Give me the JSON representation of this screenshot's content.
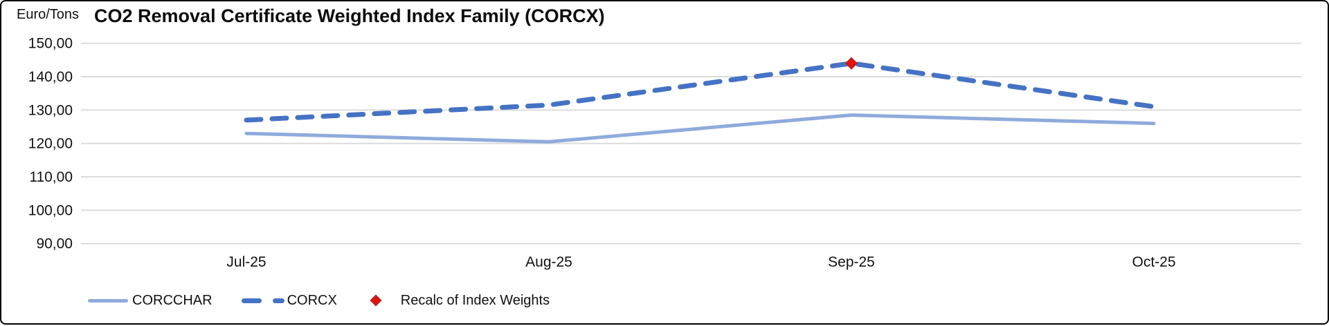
{
  "window": {
    "background": "#ffffff",
    "border_color": "#000000"
  },
  "chart_data": {
    "type": "line",
    "title": "CO2 Removal Certificate Weighted Index Family (CORCX)",
    "y_unit_label": "Euro/Tons",
    "xlabel": "",
    "ylabel": "Euro/Tons",
    "categories": [
      "Jul-25",
      "Aug-25",
      "Sep-25",
      "Oct-25"
    ],
    "series": [
      {
        "name": "CORCCHAR",
        "values": [
          123,
          120.5,
          128.5,
          126
        ],
        "color": "#8FAADC",
        "style": "solid"
      },
      {
        "name": "CORCX",
        "values": [
          127,
          131.5,
          144,
          131
        ],
        "color": "#4472C4",
        "style": "dashed"
      }
    ],
    "markers": [
      {
        "name": "Recalc of Index Weights",
        "series": "CORCX",
        "category": "Sep-25",
        "value": 144,
        "shape": "diamond",
        "color": "#E8100C"
      }
    ],
    "y_ticks": [
      {
        "label": "150,00",
        "value": 150
      },
      {
        "label": "140,00",
        "value": 140
      },
      {
        "label": "130,00",
        "value": 130
      },
      {
        "label": "120,00",
        "value": 120
      },
      {
        "label": "110,00",
        "value": 110
      },
      {
        "label": "100,00",
        "value": 100
      },
      {
        "label": "90,00",
        "value": 90
      }
    ],
    "ylim": [
      90,
      150
    ],
    "grid": "horizontal",
    "gridline_color": "#DBDBDB",
    "tick_label_color": "#111111",
    "legend_position": "bottom-left"
  }
}
